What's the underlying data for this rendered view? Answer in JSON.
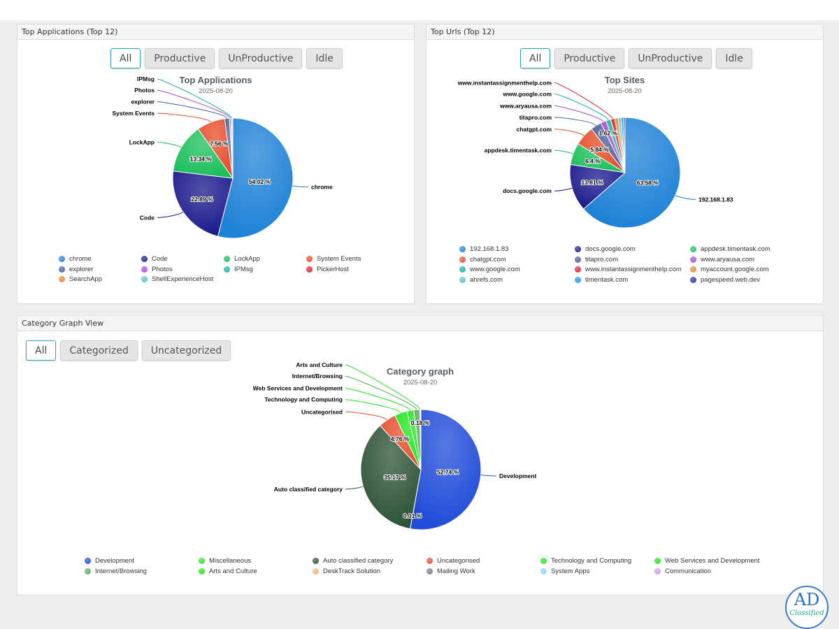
{
  "panels": {
    "apps": {
      "header": "Top Applications (Top 12)"
    },
    "urls": {
      "header": "Top Urls (Top 12)"
    },
    "category": {
      "header": "Category Graph View"
    }
  },
  "filters": {
    "apps": [
      "All",
      "Productive",
      "UnProductive",
      "Idle"
    ],
    "urls": [
      "All",
      "Productive",
      "UnProductive",
      "Idle"
    ],
    "category": [
      "All",
      "Categorized",
      "Uncategorized"
    ]
  },
  "logo": {
    "main": "AD",
    "sub": "Classified"
  },
  "chart_data": [
    {
      "id": "apps",
      "type": "pie",
      "title": "Top Applications",
      "subtitle": "2025-08-20",
      "slices": [
        {
          "name": "chrome",
          "value": 54.02,
          "pct_label": "54.02 %",
          "color": "#1f82d6"
        },
        {
          "name": "Code",
          "value": 22.89,
          "pct_label": "22.89 %",
          "color": "#1a1a8c"
        },
        {
          "name": "LockApp",
          "value": 13.34,
          "pct_label": "13.34 %",
          "color": "#1bbf5a"
        },
        {
          "name": "System Events",
          "value": 7.56,
          "pct_label": "7.56 %",
          "color": "#e54d2b"
        },
        {
          "name": "explorer",
          "value": 1.3,
          "pct_label": "",
          "color": "#4a5f95"
        },
        {
          "name": "Photos",
          "value": 0.4,
          "pct_label": "",
          "color": "#a54ad6"
        },
        {
          "name": "IPMsg",
          "value": 0.3,
          "pct_label": "",
          "color": "#1ab59e"
        },
        {
          "name": "PickerHost",
          "value": 0.1,
          "pct_label": "",
          "color": "#d9262c"
        },
        {
          "name": "SearchApp",
          "value": 0.05,
          "pct_label": "",
          "color": "#e0893a"
        },
        {
          "name": "ShellExperienceHost",
          "value": 0.04,
          "pct_label": "",
          "color": "#5bc0be"
        }
      ],
      "callouts": [
        "chrome",
        "Code",
        "LockApp",
        "System Events",
        "explorer",
        "Photos",
        "IPMsg"
      ],
      "legend_position": "bottom"
    },
    {
      "id": "urls",
      "type": "pie",
      "title": "Top Sites",
      "subtitle": "2025-08-20",
      "slices": [
        {
          "name": "192.168.1.83",
          "value": 63.58,
          "pct_label": "63.58 %",
          "color": "#1f82d6"
        },
        {
          "name": "docs.google.com",
          "value": 13.81,
          "pct_label": "13.81 %",
          "color": "#1a1a8c"
        },
        {
          "name": "appdesk.timentask.com",
          "value": 6.4,
          "pct_label": "6.4 %",
          "color": "#1bbf5a"
        },
        {
          "name": "chatgpt.com",
          "value": 5.84,
          "pct_label": "5.84 %",
          "color": "#e54d2b"
        },
        {
          "name": "titapro.com",
          "value": 3.2,
          "pct_label": "",
          "color": "#4a5f95"
        },
        {
          "name": "www.aryausa.com",
          "value": 1.62,
          "pct_label": "1.62 %",
          "color": "#a54ad6"
        },
        {
          "name": "www.google.com",
          "value": 1.4,
          "pct_label": "",
          "color": "#1ab59e"
        },
        {
          "name": "www.instantassignmenthelp.com",
          "value": 1.2,
          "pct_label": "",
          "color": "#d9262c"
        },
        {
          "name": "myaccount.google.com",
          "value": 1.0,
          "pct_label": "",
          "color": "#e0893a"
        },
        {
          "name": "ahrefs.com",
          "value": 0.8,
          "pct_label": "",
          "color": "#5bc0be"
        },
        {
          "name": "timentask.com",
          "value": 0.7,
          "pct_label": "",
          "color": "#2196f3"
        },
        {
          "name": "pagespeed.web.dev",
          "value": 0.5,
          "pct_label": "",
          "color": "#283593"
        }
      ],
      "callouts": [
        "192.168.1.83",
        "docs.google.com",
        "appdesk.timentask.com",
        "chatgpt.com",
        "titapro.com",
        "www.aryausa.com",
        "www.google.com",
        "www.instantassignmenthelp.com"
      ],
      "legend_position": "bottom"
    },
    {
      "id": "category",
      "type": "pie",
      "title": "Category graph",
      "subtitle": "2025-08-20",
      "slices": [
        {
          "name": "Development",
          "value": 52.74,
          "pct_label": "52.74 %",
          "color": "#1f4bd8"
        },
        {
          "name": "Miscellaneous",
          "value": 0.01,
          "pct_label": "0.01 %",
          "color": "#22e61f"
        },
        {
          "name": "Auto classified category",
          "value": 35.17,
          "pct_label": "35.17 %",
          "color": "#2d5336"
        },
        {
          "name": "Uncategorised",
          "value": 4.76,
          "pct_label": "4.76 %",
          "color": "#e54d2b"
        },
        {
          "name": "Technology and Computing",
          "value": 3.4,
          "pct_label": "",
          "color": "#22e61f"
        },
        {
          "name": "Web Services and Development",
          "value": 1.8,
          "pct_label": "",
          "color": "#22e61f"
        },
        {
          "name": "Internet/Browsing",
          "value": 1.6,
          "pct_label": "",
          "color": "#5aaa58"
        },
        {
          "name": "Arts and Culture",
          "value": 0.18,
          "pct_label": "0.18 %",
          "color": "#22e61f"
        },
        {
          "name": "DeskTrack Solution",
          "value": 0.05,
          "pct_label": "",
          "color": "#f0b27a"
        },
        {
          "name": "Mailing Work",
          "value": 0.03,
          "pct_label": "",
          "color": "#7a7a7a"
        },
        {
          "name": "System Apps",
          "value": 0.02,
          "pct_label": "",
          "color": "#8fd3f0"
        },
        {
          "name": "Communication",
          "value": 0.02,
          "pct_label": "",
          "color": "#c99af0"
        }
      ],
      "callouts": [
        "Development",
        "Auto classified category",
        "Uncategorised",
        "Technology and Computing",
        "Web Services and Development",
        "Internet/Browsing",
        "Arts and Culture"
      ],
      "legend_position": "bottom"
    }
  ]
}
